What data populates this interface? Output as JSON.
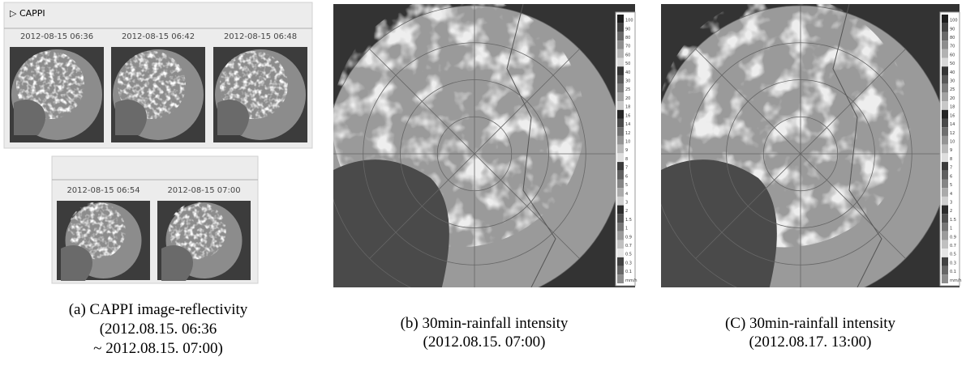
{
  "panel_a": {
    "header": "▷ CAPPI",
    "row1": [
      "2012-08-15 06:36",
      "2012-08-15 06:42",
      "2012-08-15 06:48"
    ],
    "row2": [
      "2012-08-15 06:54",
      "2012-08-15 07:00"
    ],
    "caption": [
      "(a)  CAPPI  image-reflectivity",
      "(2012.08.15.  06:36",
      "~ 2012.08.15.  07:00)"
    ]
  },
  "panel_b": {
    "caption": [
      "(b)  30min-rainfall  intensity",
      "(2012.08.15.  07:00)"
    ],
    "colorbar": [
      "100",
      "90",
      "80",
      "70",
      "60",
      "50",
      "40",
      "30",
      "25",
      "20",
      "18",
      "16",
      "14",
      "12",
      "10",
      "9",
      "8",
      "7",
      "6",
      "5",
      "4",
      "3",
      "2",
      "1.5",
      "1",
      "0.9",
      "0.7",
      "0.5",
      "0.3",
      "0.1",
      "mm/h"
    ]
  },
  "panel_c": {
    "caption": [
      "(C)  30min-rainfall  intensity",
      "(2012.08.17.  13:00)"
    ],
    "colorbar": [
      "100",
      "90",
      "80",
      "70",
      "60",
      "50",
      "40",
      "30",
      "25",
      "20",
      "18",
      "16",
      "14",
      "12",
      "10",
      "9",
      "8",
      "7",
      "6",
      "5",
      "4",
      "3",
      "2",
      "1.5",
      "1",
      "0.9",
      "0.7",
      "0.5",
      "0.3",
      "0.1",
      "mm/h"
    ]
  }
}
